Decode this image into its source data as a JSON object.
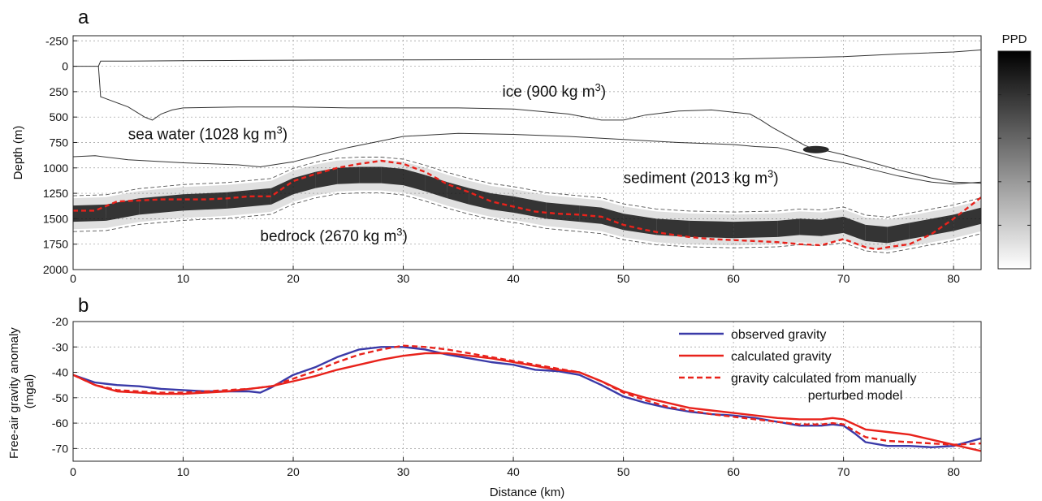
{
  "chart_data": [
    {
      "id": "a",
      "type": "heatmap",
      "panel_label": "a",
      "xlabel": "",
      "ylabel": "Depth (m)",
      "xlim": [
        0,
        82.5
      ],
      "ylim": [
        2000,
        -300
      ],
      "y_reversed": true,
      "grid": true,
      "xticks": [
        "0",
        "10",
        "20",
        "30",
        "40",
        "50",
        "60",
        "70",
        "80"
      ],
      "yticks": [
        "-250",
        "0",
        "250",
        "500",
        "750",
        "1000",
        "1250",
        "1500",
        "1750",
        "2000"
      ],
      "colorbar": {
        "title": "PPD",
        "ticks": [
          "0",
          "0.2",
          "0.4",
          "0.6",
          "0.8",
          "1"
        ],
        "range": [
          0,
          1
        ],
        "colors": [
          "#ffffff",
          "#000000"
        ]
      },
      "annotations": [
        {
          "text": "ice (900 kg m",
          "sup": "3",
          "close": ")",
          "x": 39,
          "y": 300
        },
        {
          "text": "sea water (1028 kg m",
          "sup": "3",
          "close": ")",
          "x": 5,
          "y": 720
        },
        {
          "text": "sediment (2013 kg m",
          "sup": "3",
          "close": ")",
          "x": 50,
          "y": 1150
        },
        {
          "text": "bedrock (2670 kg m",
          "sup": "3",
          "close": ")",
          "x": 17,
          "y": 1720
        }
      ],
      "boundaries": [
        {
          "name": "ice surface",
          "x": [
            0,
            2.3,
            2.5,
            5,
            10,
            20,
            30,
            40,
            50,
            60,
            70,
            75,
            80,
            82.5
          ],
          "y": [
            0,
            0,
            -50,
            -50,
            -55,
            -60,
            -62,
            -65,
            -70,
            -70,
            -95,
            -120,
            -140,
            -160
          ]
        },
        {
          "name": "ice base",
          "x": [
            2.3,
            2.5,
            5,
            6.5,
            7.2,
            8,
            9,
            10,
            15,
            20,
            25,
            30,
            35,
            40,
            45,
            47,
            48,
            50,
            52,
            55,
            58,
            61.5,
            62.5,
            63.5,
            65.5,
            66.5,
            67,
            68,
            70,
            72,
            75,
            78,
            80,
            82.5
          ],
          "y": [
            0,
            300,
            400,
            500,
            530,
            470,
            430,
            410,
            400,
            400,
            410,
            410,
            410,
            420,
            470,
            510,
            530,
            530,
            480,
            440,
            430,
            470,
            530,
            600,
            720,
            780,
            800,
            820,
            870,
            930,
            1020,
            1100,
            1140,
            1150
          ]
        },
        {
          "name": "sediment top",
          "x": [
            0,
            2,
            5,
            10,
            15,
            17,
            20,
            25,
            30,
            35,
            40,
            45,
            50,
            55,
            60,
            62,
            64,
            66,
            68,
            70,
            72,
            75,
            78,
            80,
            82.5
          ],
          "y": [
            890,
            880,
            920,
            950,
            970,
            990,
            940,
            800,
            690,
            660,
            670,
            690,
            720,
            750,
            770,
            790,
            800,
            850,
            910,
            950,
            1000,
            1080,
            1140,
            1160,
            1140
          ]
        }
      ],
      "bedrock_interface": {
        "x": [
          0,
          2,
          4,
          6,
          8,
          10,
          12,
          14,
          16,
          18,
          20,
          22,
          24,
          26,
          28,
          30,
          32,
          34,
          36,
          38,
          40,
          42,
          44,
          46,
          48,
          50,
          52,
          54,
          56,
          58,
          60,
          62,
          64,
          66,
          68,
          70,
          71,
          72,
          73,
          74,
          76,
          78,
          80,
          82.5
        ],
        "y": [
          1420,
          1420,
          1330,
          1320,
          1310,
          1310,
          1310,
          1300,
          1280,
          1280,
          1130,
          1060,
          1000,
          960,
          930,
          960,
          1040,
          1160,
          1240,
          1330,
          1380,
          1430,
          1450,
          1460,
          1480,
          1560,
          1610,
          1650,
          1680,
          1700,
          1710,
          1720,
          1730,
          1750,
          1760,
          1700,
          1740,
          1780,
          1800,
          1780,
          1750,
          1650,
          1500,
          1290
        ]
      },
      "ppd_band": {
        "x": [
          0,
          3,
          6,
          10,
          14,
          18,
          20,
          22,
          24,
          26,
          28,
          30,
          32,
          34,
          36,
          38,
          40,
          43,
          46,
          48,
          50,
          53,
          56,
          60,
          64,
          66,
          68,
          70,
          72,
          74,
          76,
          78,
          80,
          82.5
        ],
        "y": [
          1450,
          1440,
          1380,
          1340,
          1320,
          1280,
          1180,
          1120,
          1080,
          1070,
          1070,
          1090,
          1150,
          1220,
          1280,
          1330,
          1360,
          1420,
          1450,
          1470,
          1530,
          1580,
          1600,
          1610,
          1600,
          1580,
          1590,
          1560,
          1640,
          1660,
          1620,
          1580,
          1540,
          1470
        ],
        "halfwidth": 80
      },
      "ppd_blob": {
        "x": 67.5,
        "y": 820,
        "peak": 0.9
      }
    },
    {
      "id": "b",
      "type": "line",
      "panel_label": "b",
      "xlabel": "Distance (km)",
      "ylabel": [
        "Free-air gravity anomaly",
        "(mgal)"
      ],
      "xlim": [
        0,
        82.5
      ],
      "ylim": [
        -75,
        -20
      ],
      "grid": true,
      "xticks": [
        "0",
        "10",
        "20",
        "30",
        "40",
        "50",
        "60",
        "70",
        "80"
      ],
      "yticks": [
        "-20",
        "-30",
        "-40",
        "-50",
        "-60",
        "-70"
      ],
      "legend_position": "top-right",
      "series": [
        {
          "name": "observed gravity",
          "color": "#3a3aa8",
          "dash": "solid",
          "x": [
            0,
            2,
            4,
            6,
            8,
            10,
            12,
            14,
            16,
            17,
            18,
            20,
            22,
            24,
            26,
            28,
            30,
            32,
            34,
            36,
            38,
            40,
            42,
            44,
            46,
            48,
            50,
            52,
            54,
            56,
            58,
            60,
            62,
            64,
            66,
            68,
            69,
            70,
            71,
            72,
            74,
            76,
            78,
            80,
            82.5
          ],
          "y": [
            -41,
            -44,
            -45,
            -45.5,
            -46.5,
            -47,
            -47.5,
            -47.5,
            -47.5,
            -48,
            -46,
            -41,
            -38,
            -34,
            -31,
            -30,
            -30,
            -31,
            -33,
            -34.5,
            -36,
            -37,
            -39,
            -39.5,
            -41,
            -45,
            -49.5,
            -52,
            -54,
            -55.5,
            -56.5,
            -57,
            -58,
            -59.5,
            -61,
            -61,
            -60.5,
            -61,
            -64,
            -67.5,
            -69,
            -69,
            -69.5,
            -69,
            -66
          ]
        },
        {
          "name": "calculated gravity",
          "color": "#e8221b",
          "dash": "solid",
          "x": [
            0,
            2,
            4,
            6,
            8,
            10,
            12,
            14,
            16,
            18,
            20,
            22,
            24,
            26,
            28,
            30,
            32,
            34,
            36,
            38,
            40,
            42,
            44,
            46,
            48,
            50,
            52,
            54,
            56,
            58,
            60,
            62,
            64,
            66,
            68,
            69,
            70,
            71,
            72,
            74,
            76,
            78,
            80,
            82.5
          ],
          "y": [
            -41,
            -45,
            -47.5,
            -48,
            -48.5,
            -48.5,
            -48,
            -47.5,
            -46.5,
            -45.5,
            -43.5,
            -41.5,
            -39,
            -37,
            -35,
            -33.5,
            -32.5,
            -32.5,
            -33.5,
            -34.5,
            -36,
            -37.5,
            -39,
            -40,
            -43.5,
            -47.5,
            -50,
            -52,
            -54,
            -55,
            -56,
            -57,
            -58,
            -58.5,
            -58.5,
            -58,
            -58.5,
            -60.5,
            -62.5,
            -63.5,
            -64.5,
            -66.5,
            -68.5,
            -71
          ]
        },
        {
          "name": "gravity calculated from manually perturbed model",
          "name_lines": [
            "gravity calculated from manually",
            "perturbed model"
          ],
          "color": "#e8221b",
          "dash": "dashed",
          "x": [
            0,
            2,
            4,
            6,
            8,
            10,
            12,
            14,
            16,
            18,
            20,
            22,
            24,
            26,
            28,
            30,
            32,
            34,
            36,
            38,
            40,
            42,
            44,
            46,
            48,
            50,
            52,
            54,
            56,
            58,
            60,
            62,
            64,
            66,
            68,
            69,
            70,
            71,
            72,
            74,
            76,
            78,
            80,
            82.5
          ],
          "y": [
            -41,
            -45,
            -47,
            -47.5,
            -48,
            -48,
            -47.5,
            -47,
            -46.5,
            -45.5,
            -42.5,
            -39.5,
            -36,
            -33,
            -31,
            -29.5,
            -30,
            -31,
            -32.5,
            -34,
            -35.5,
            -37,
            -38.5,
            -40,
            -43.5,
            -48,
            -51,
            -53.5,
            -55,
            -56.5,
            -57.5,
            -58.5,
            -59.5,
            -60.5,
            -60.5,
            -60,
            -60.5,
            -63,
            -65.5,
            -67,
            -67.5,
            -68,
            -68.5,
            -68
          ]
        }
      ]
    }
  ]
}
